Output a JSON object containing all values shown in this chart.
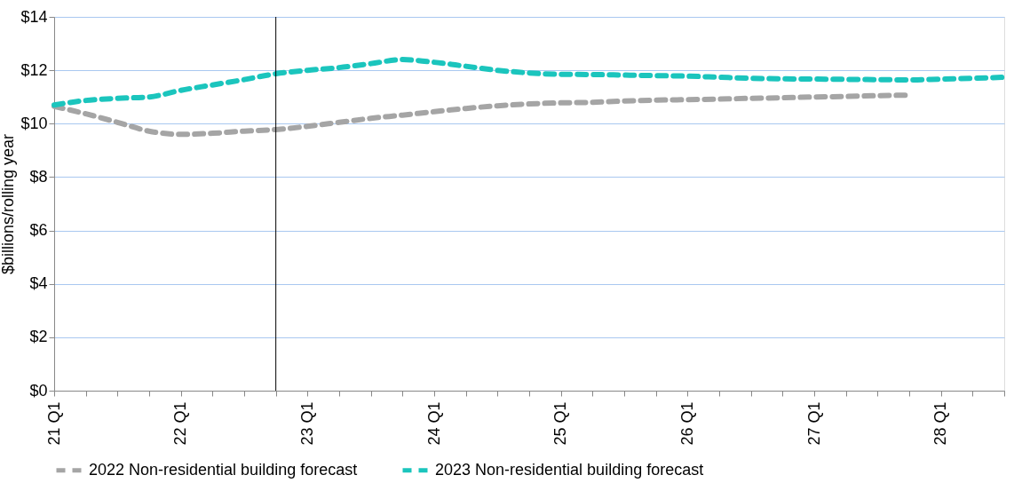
{
  "chart_data": {
    "type": "line",
    "ylabel": "$billions/rolling year",
    "categories": [
      "21 Q1",
      null,
      null,
      null,
      "22 Q1",
      null,
      null,
      null,
      "23 Q1",
      null,
      null,
      null,
      "24 Q1",
      null,
      null,
      null,
      "25 Q1",
      null,
      null,
      null,
      "26 Q1",
      null,
      null,
      null,
      "27 Q1",
      null,
      null,
      null,
      "28 Q1",
      null,
      null
    ],
    "series": [
      {
        "name": "2022 Non-residential building forecast",
        "color": "#a5a5a5",
        "values": [
          10.65,
          10.37,
          10.05,
          9.72,
          9.6,
          9.64,
          9.72,
          9.78,
          9.9,
          10.05,
          10.2,
          10.32,
          10.45,
          10.57,
          10.67,
          10.74,
          10.78,
          10.8,
          10.85,
          10.88,
          10.9,
          10.92,
          10.95,
          10.97,
          11.0,
          11.02,
          11.05,
          11.07,
          null,
          null,
          null
        ]
      },
      {
        "name": "2023 Non-residential building forecast",
        "color": "#1bc5bd",
        "values": [
          10.7,
          10.87,
          10.95,
          11.0,
          11.25,
          11.45,
          11.65,
          11.87,
          12.0,
          12.1,
          12.25,
          12.4,
          12.3,
          12.15,
          12.0,
          11.9,
          11.85,
          11.84,
          11.82,
          11.8,
          11.78,
          11.74,
          11.7,
          11.68,
          11.67,
          11.66,
          11.65,
          11.64,
          11.67,
          11.7,
          11.74
        ]
      }
    ],
    "ylim": [
      0,
      14
    ],
    "yticks": [
      {
        "value": 0,
        "label": "$0"
      },
      {
        "value": 2,
        "label": "$2"
      },
      {
        "value": 4,
        "label": "$4"
      },
      {
        "value": 6,
        "label": "$6"
      },
      {
        "value": 8,
        "label": "$8"
      },
      {
        "value": 10,
        "label": "$10"
      },
      {
        "value": 12,
        "label": "$12"
      },
      {
        "value": 14,
        "label": "$14"
      }
    ],
    "grid": "y",
    "legend": "bottom",
    "line_style": "dashed",
    "marker": "none"
  }
}
